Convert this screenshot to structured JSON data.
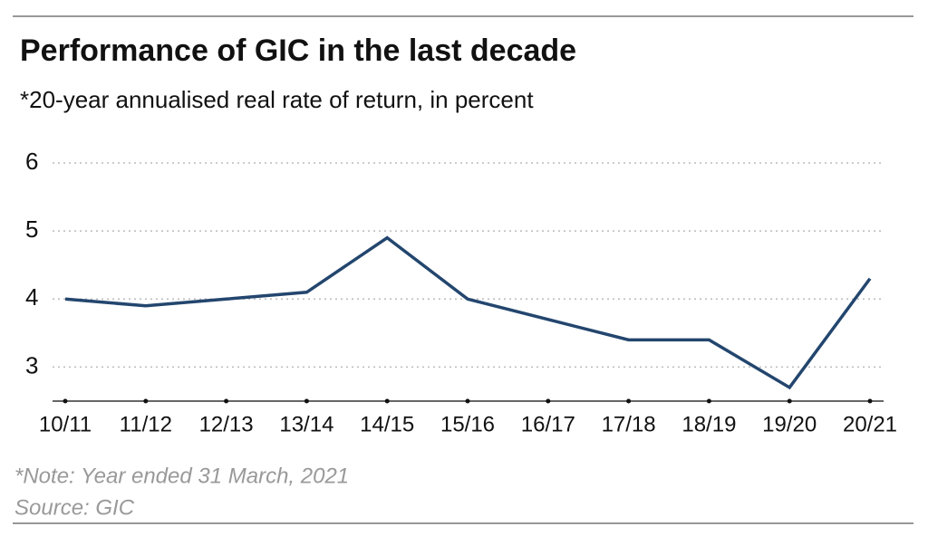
{
  "chart_data": {
    "type": "line",
    "title": "Performance of GIC in the last decade",
    "subtitle": "*20-year annualised real rate of return, in percent",
    "categories": [
      "10/11",
      "11/12",
      "12/13",
      "13/14",
      "14/15",
      "15/16",
      "16/17",
      "17/18",
      "18/19",
      "19/20",
      "20/21"
    ],
    "series": [
      {
        "name": "GIC",
        "color": "#23466e",
        "values": [
          4.0,
          3.9,
          4.0,
          4.1,
          4.9,
          4.0,
          3.7,
          3.4,
          3.4,
          2.7,
          4.3
        ]
      }
    ],
    "ylim": [
      2.5,
      6
    ],
    "yticks": [
      3,
      4,
      5,
      6
    ],
    "grid": true,
    "note": "*Note: Year ended 31 March, 2021",
    "source": "Source: GIC"
  }
}
